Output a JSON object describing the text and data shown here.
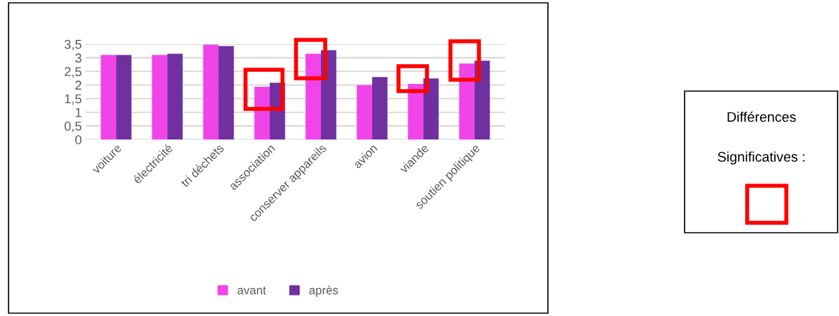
{
  "chart_data": {
    "type": "bar",
    "categories": [
      "voiture",
      "électricité",
      "tri déchets",
      "association",
      "conserver appareils",
      "avion",
      "viande",
      "soutien politique"
    ],
    "series": [
      {
        "name": "avant",
        "color": "#f044e8",
        "values": [
          3.1,
          3.1,
          3.48,
          1.93,
          3.15,
          2.0,
          2.04,
          2.79
        ]
      },
      {
        "name": "après",
        "color": "#7030a0",
        "values": [
          3.1,
          3.15,
          3.43,
          2.08,
          3.28,
          2.29,
          2.24,
          2.89
        ]
      }
    ],
    "ylim": [
      0,
      3.5
    ],
    "yticks": [
      {
        "value": 0,
        "label": "0"
      },
      {
        "value": 0.5,
        "label": "0,5"
      },
      {
        "value": 1,
        "label": "1"
      },
      {
        "value": 1.5,
        "label": "1,5"
      },
      {
        "value": 2,
        "label": "2"
      },
      {
        "value": 2.5,
        "label": "2,5"
      },
      {
        "value": 3,
        "label": "3"
      },
      {
        "value": 3.5,
        "label": "3,5"
      }
    ],
    "grid": "y",
    "legend": "bottom",
    "annotations": [
      "Différences",
      "Significatives :"
    ]
  }
}
